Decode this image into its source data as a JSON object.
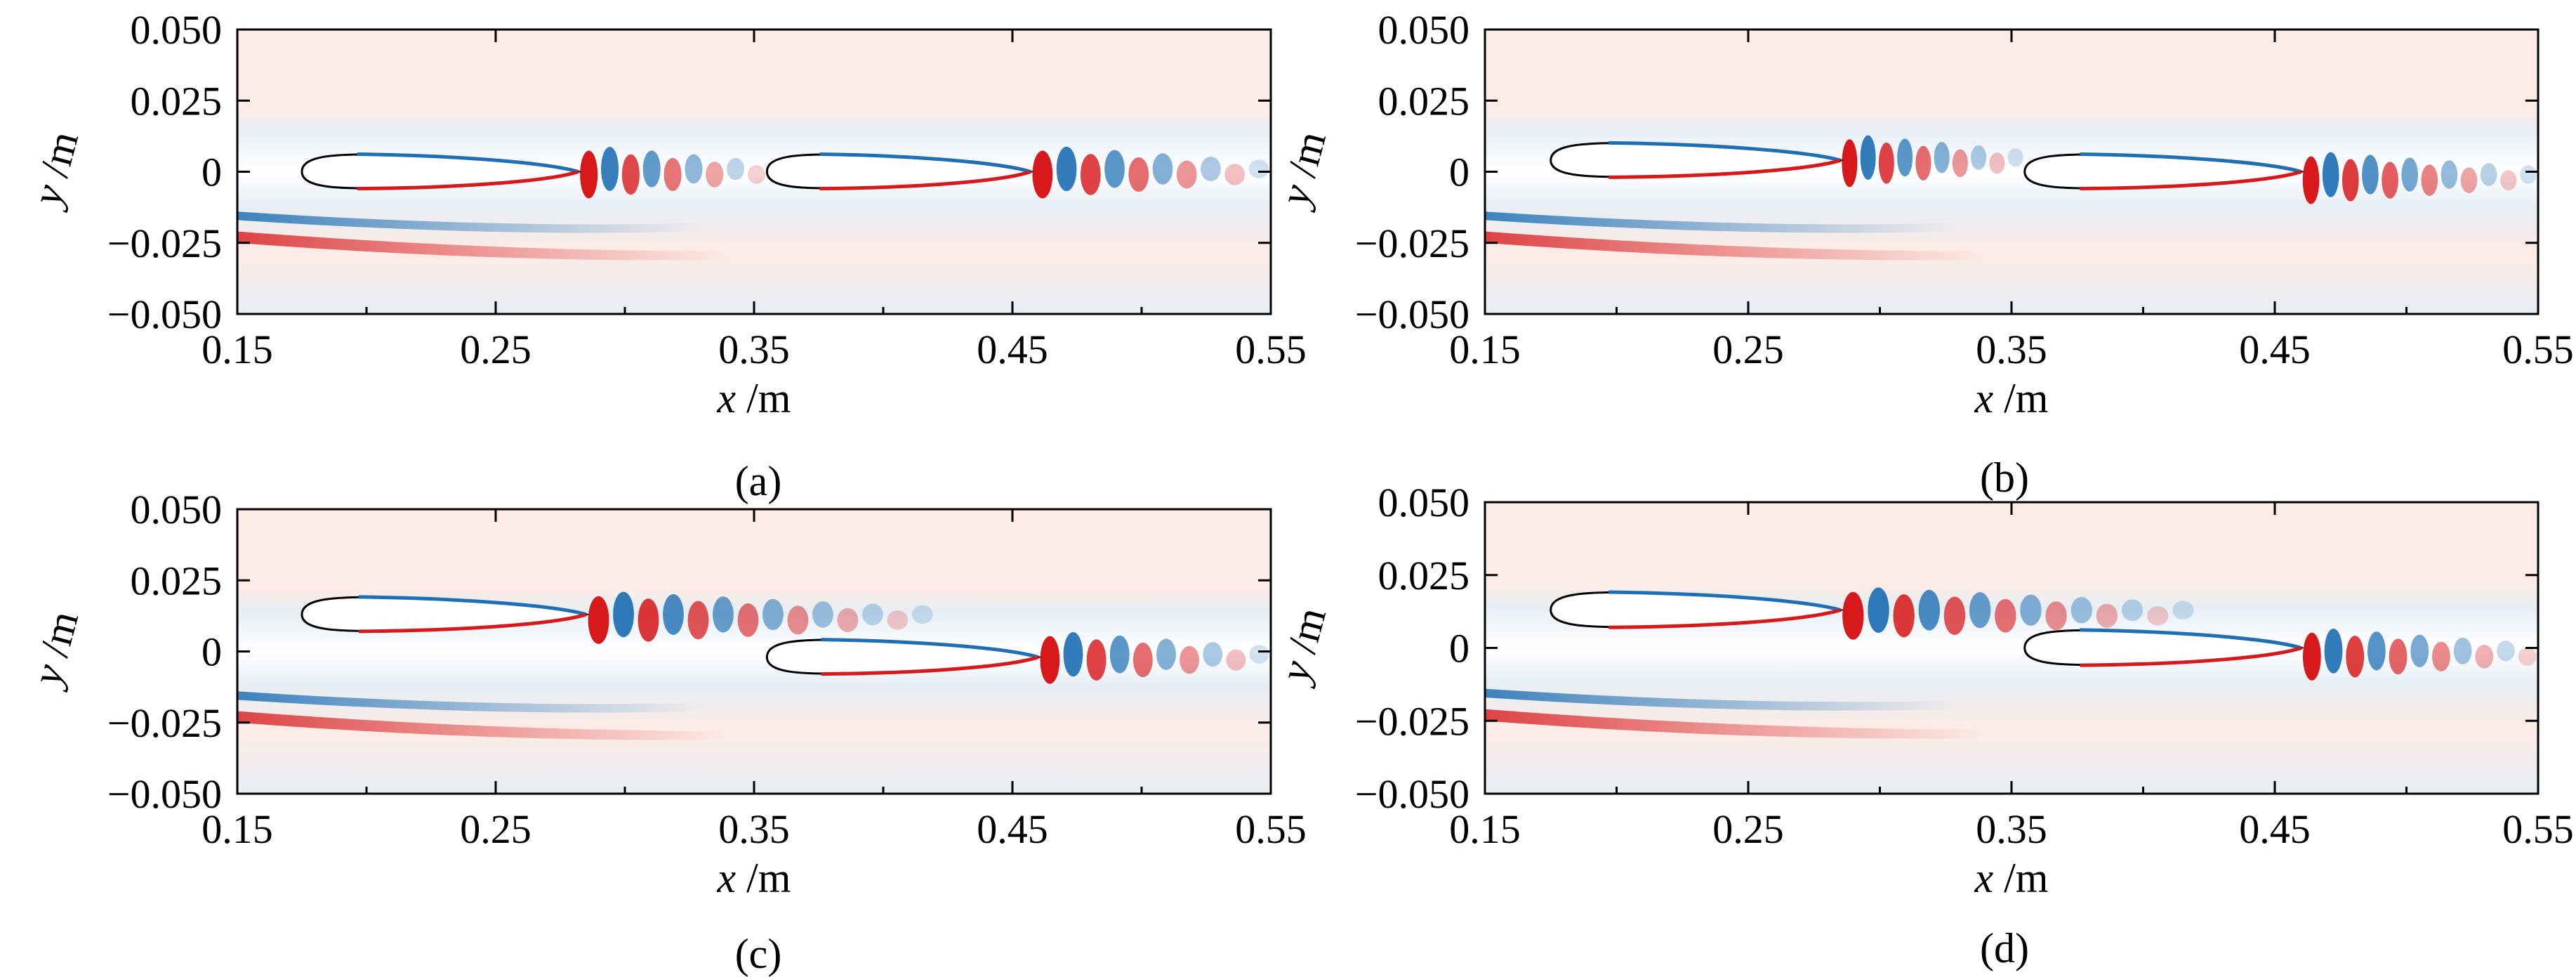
{
  "figure": {
    "colors": {
      "background_positive": "#fdebe5",
      "background_negative": "#e6eef4",
      "vortex_red": "#d7191c",
      "vortex_blue": "#1f6fb4",
      "airfoil_fill": "#ffffff",
      "airfoil_edge": "#000000"
    }
  },
  "chart_data": [
    {
      "type": "heatmap",
      "panel": "a",
      "caption": "(a)",
      "xlabel": "x /m",
      "xlabel_var": "x",
      "xlabel_unit": " /m",
      "ylabel": "y /m",
      "ylabel_var": "y",
      "ylabel_unit": " /m",
      "xlim": [
        0.15,
        0.55
      ],
      "ylim": [
        -0.05,
        0.05
      ],
      "xticks": [
        0.15,
        0.25,
        0.35,
        0.45,
        0.55
      ],
      "xtick_labels": [
        "0.15",
        "0.25",
        "0.35",
        "0.45",
        "0.55"
      ],
      "yticks": [
        0.05,
        0.025,
        0,
        -0.025,
        -0.05
      ],
      "ytick_labels": [
        "0.050",
        "0.025",
        "0",
        "−0.025",
        "−0.050"
      ],
      "airfoils": [
        {
          "x_le": 0.175,
          "x_te": 0.282,
          "y": 0.0,
          "half_thickness": 0.0055
        },
        {
          "x_le": 0.355,
          "x_te": 0.457,
          "y": 0.0,
          "half_thickness": 0.0055
        }
      ],
      "wakes": [
        {
          "x0": 0.282,
          "x1": 0.355,
          "y": 0.0,
          "count": 9
        },
        {
          "x0": 0.457,
          "x1": 0.55,
          "y": 0.0,
          "count": 10
        }
      ]
    },
    {
      "type": "heatmap",
      "panel": "b",
      "caption": "(b)",
      "xlabel": "x /m",
      "xlabel_var": "x",
      "xlabel_unit": " /m",
      "ylabel": "y /m",
      "ylabel_var": "y",
      "ylabel_unit": " /m",
      "xlim": [
        0.15,
        0.55
      ],
      "ylim": [
        -0.05,
        0.05
      ],
      "xticks": [
        0.15,
        0.25,
        0.35,
        0.45,
        0.55
      ],
      "xtick_labels": [
        "0.15",
        "0.25",
        "0.35",
        "0.45",
        "0.55"
      ],
      "yticks": [
        0.05,
        0.025,
        0,
        -0.025,
        -0.05
      ],
      "ytick_labels": [
        "0.050",
        "0.025",
        "0",
        "−0.025",
        "−0.050"
      ],
      "airfoils": [
        {
          "x_le": 0.175,
          "x_te": 0.285,
          "y": 0.004,
          "half_thickness": 0.0055
        },
        {
          "x_le": 0.355,
          "x_te": 0.46,
          "y": 0.0,
          "half_thickness": 0.0055
        }
      ],
      "wakes": [
        {
          "x0": 0.285,
          "x1": 0.355,
          "y": 0.004,
          "count": 10
        },
        {
          "x0": 0.46,
          "x1": 0.55,
          "y": -0.002,
          "count": 12
        }
      ]
    },
    {
      "type": "heatmap",
      "panel": "c",
      "caption": "(c)",
      "xlabel": "x /m",
      "xlabel_var": "x",
      "xlabel_unit": " /m",
      "ylabel": "y /m",
      "ylabel_var": "y",
      "ylabel_unit": " /m",
      "xlim": [
        0.15,
        0.55
      ],
      "ylim": [
        -0.05,
        0.05
      ],
      "xticks": [
        0.15,
        0.25,
        0.35,
        0.45,
        0.55
      ],
      "xtick_labels": [
        "0.15",
        "0.25",
        "0.35",
        "0.45",
        "0.55"
      ],
      "yticks": [
        0.05,
        0.025,
        0,
        -0.025,
        -0.05
      ],
      "ytick_labels": [
        "0.050",
        "0.025",
        "0",
        "−0.025",
        "−0.050"
      ],
      "airfoils": [
        {
          "x_le": 0.175,
          "x_te": 0.285,
          "y": 0.013,
          "half_thickness": 0.0055
        },
        {
          "x_le": 0.355,
          "x_te": 0.46,
          "y": -0.002,
          "half_thickness": 0.0055
        }
      ],
      "wakes": [
        {
          "x0": 0.285,
          "x1": 0.42,
          "y": 0.012,
          "count": 14
        },
        {
          "x0": 0.46,
          "x1": 0.55,
          "y": -0.002,
          "count": 10
        }
      ]
    },
    {
      "type": "heatmap",
      "panel": "d",
      "caption": "(d)",
      "xlabel": "x /m",
      "xlabel_var": "x",
      "xlabel_unit": " /m",
      "ylabel": "y /m",
      "ylabel_var": "y",
      "ylabel_unit": " /m",
      "xlim": [
        0.15,
        0.55
      ],
      "ylim": [
        -0.05,
        0.05
      ],
      "xticks": [
        0.15,
        0.25,
        0.35,
        0.45,
        0.55
      ],
      "xtick_labels": [
        "0.15",
        "0.25",
        "0.35",
        "0.45",
        "0.55"
      ],
      "yticks": [
        0.05,
        0.025,
        0,
        -0.025,
        -0.05
      ],
      "ytick_labels": [
        "0.050",
        "0.025",
        "0",
        "−0.025",
        "−0.050"
      ],
      "airfoils": [
        {
          "x_le": 0.175,
          "x_te": 0.285,
          "y": 0.013,
          "half_thickness": 0.0055
        },
        {
          "x_le": 0.355,
          "x_te": 0.46,
          "y": 0.0,
          "half_thickness": 0.0055
        }
      ],
      "wakes": [
        {
          "x0": 0.285,
          "x1": 0.42,
          "y": 0.012,
          "count": 14
        },
        {
          "x0": 0.46,
          "x1": 0.55,
          "y": -0.002,
          "count": 11
        }
      ]
    }
  ]
}
